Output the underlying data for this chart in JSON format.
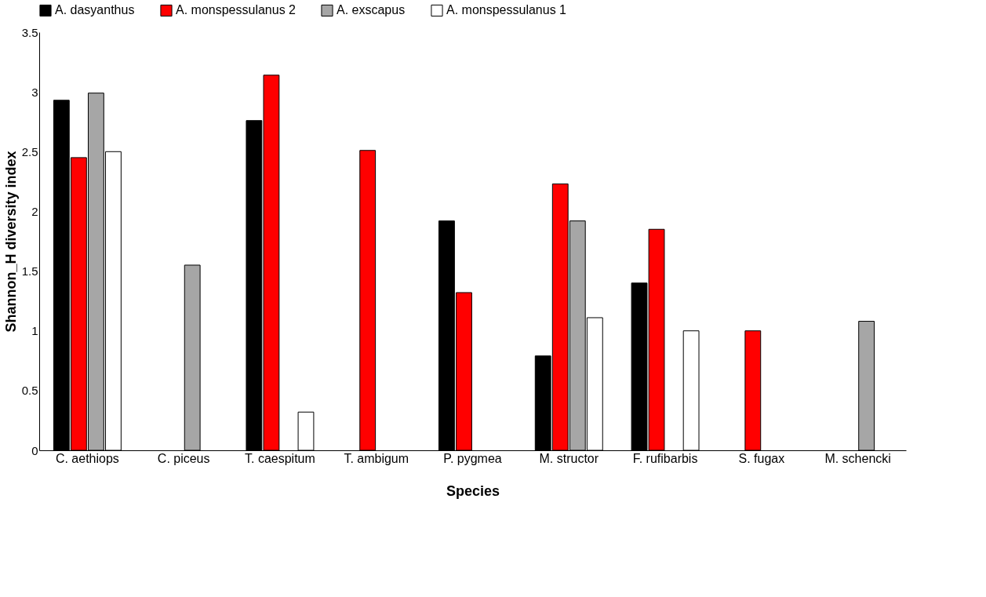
{
  "chart_data": {
    "type": "bar",
    "xlabel": "Species",
    "ylabel": "Shannon_H diversity index",
    "categories": [
      "C. aethiops",
      "C. piceus",
      "T. caespitum",
      "T. ambigum",
      "P. pygmea",
      "M. structor",
      "F. rufibarbis",
      "S. fugax",
      "M. schencki"
    ],
    "series": [
      {
        "name": "A. dasyanthus",
        "color": "#000000",
        "values": [
          2.93,
          null,
          2.76,
          null,
          1.92,
          0.79,
          1.4,
          null,
          null
        ]
      },
      {
        "name": "A. monspessulanus 2",
        "color": "#ff0000",
        "values": [
          2.45,
          null,
          3.14,
          2.51,
          1.32,
          2.23,
          1.85,
          1.0,
          null
        ]
      },
      {
        "name": "A. exscapus",
        "color": "#a6a6a6",
        "values": [
          2.99,
          1.55,
          null,
          null,
          null,
          1.92,
          null,
          null,
          1.08
        ]
      },
      {
        "name": "A. monspessulanus 1",
        "color": "#ffffff",
        "values": [
          2.5,
          null,
          0.32,
          null,
          null,
          1.11,
          1.0,
          null,
          null
        ]
      }
    ],
    "ylim": [
      0,
      3.5
    ],
    "yticks": [
      0,
      0.5,
      1,
      1.5,
      2,
      2.5,
      3,
      3.5
    ],
    "grid": false,
    "legend": "top"
  }
}
